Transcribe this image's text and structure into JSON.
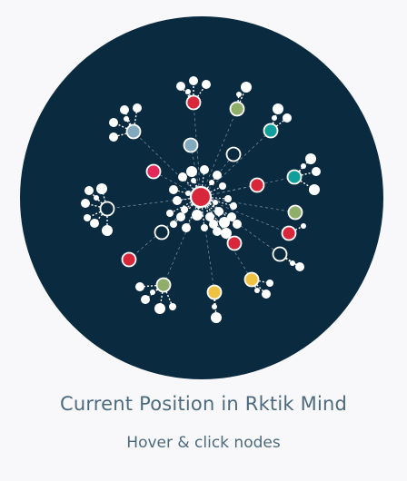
{
  "caption": {
    "title": "Current Position in Rktik Mind",
    "subtitle": "Hover & click nodes"
  },
  "colors": {
    "background_disc": "#0a2a3f",
    "page": "#f8f8fa",
    "edge": "#8fa3b3",
    "red": "#d8263a",
    "pink": "#e5285a",
    "green": "#8fae6a",
    "teal": "#129e9a",
    "blue": "#82a9bf",
    "yellow": "#f0c243",
    "hollow": "#0a2a3f",
    "leaf": "#ffffff"
  },
  "graph": {
    "center": {
      "id": "center",
      "color": "red"
    },
    "hubs": [
      {
        "id": "h-top",
        "color": "red"
      },
      {
        "id": "h-top-right-green",
        "color": "green"
      },
      {
        "id": "h-teal-upper",
        "color": "teal"
      },
      {
        "id": "h-blue-upper-left",
        "color": "blue"
      },
      {
        "id": "h-blue-inner",
        "color": "blue"
      },
      {
        "id": "h-hollow-inner-top",
        "color": "hollow"
      },
      {
        "id": "h-pink",
        "color": "pink"
      },
      {
        "id": "h-red-right",
        "color": "red"
      },
      {
        "id": "h-teal-right",
        "color": "teal"
      },
      {
        "id": "h-green-right",
        "color": "green"
      },
      {
        "id": "h-red-right-low",
        "color": "red"
      },
      {
        "id": "h-hollow-left",
        "color": "hollow"
      },
      {
        "id": "h-hollow-inner-left",
        "color": "hollow"
      },
      {
        "id": "h-red-left-low",
        "color": "red"
      },
      {
        "id": "h-red-inner-low",
        "color": "red"
      },
      {
        "id": "h-hollow-right-low",
        "color": "hollow"
      },
      {
        "id": "h-green-low",
        "color": "green"
      },
      {
        "id": "h-yellow-low",
        "color": "yellow"
      },
      {
        "id": "h-yellow-low-right",
        "color": "yellow"
      }
    ]
  }
}
